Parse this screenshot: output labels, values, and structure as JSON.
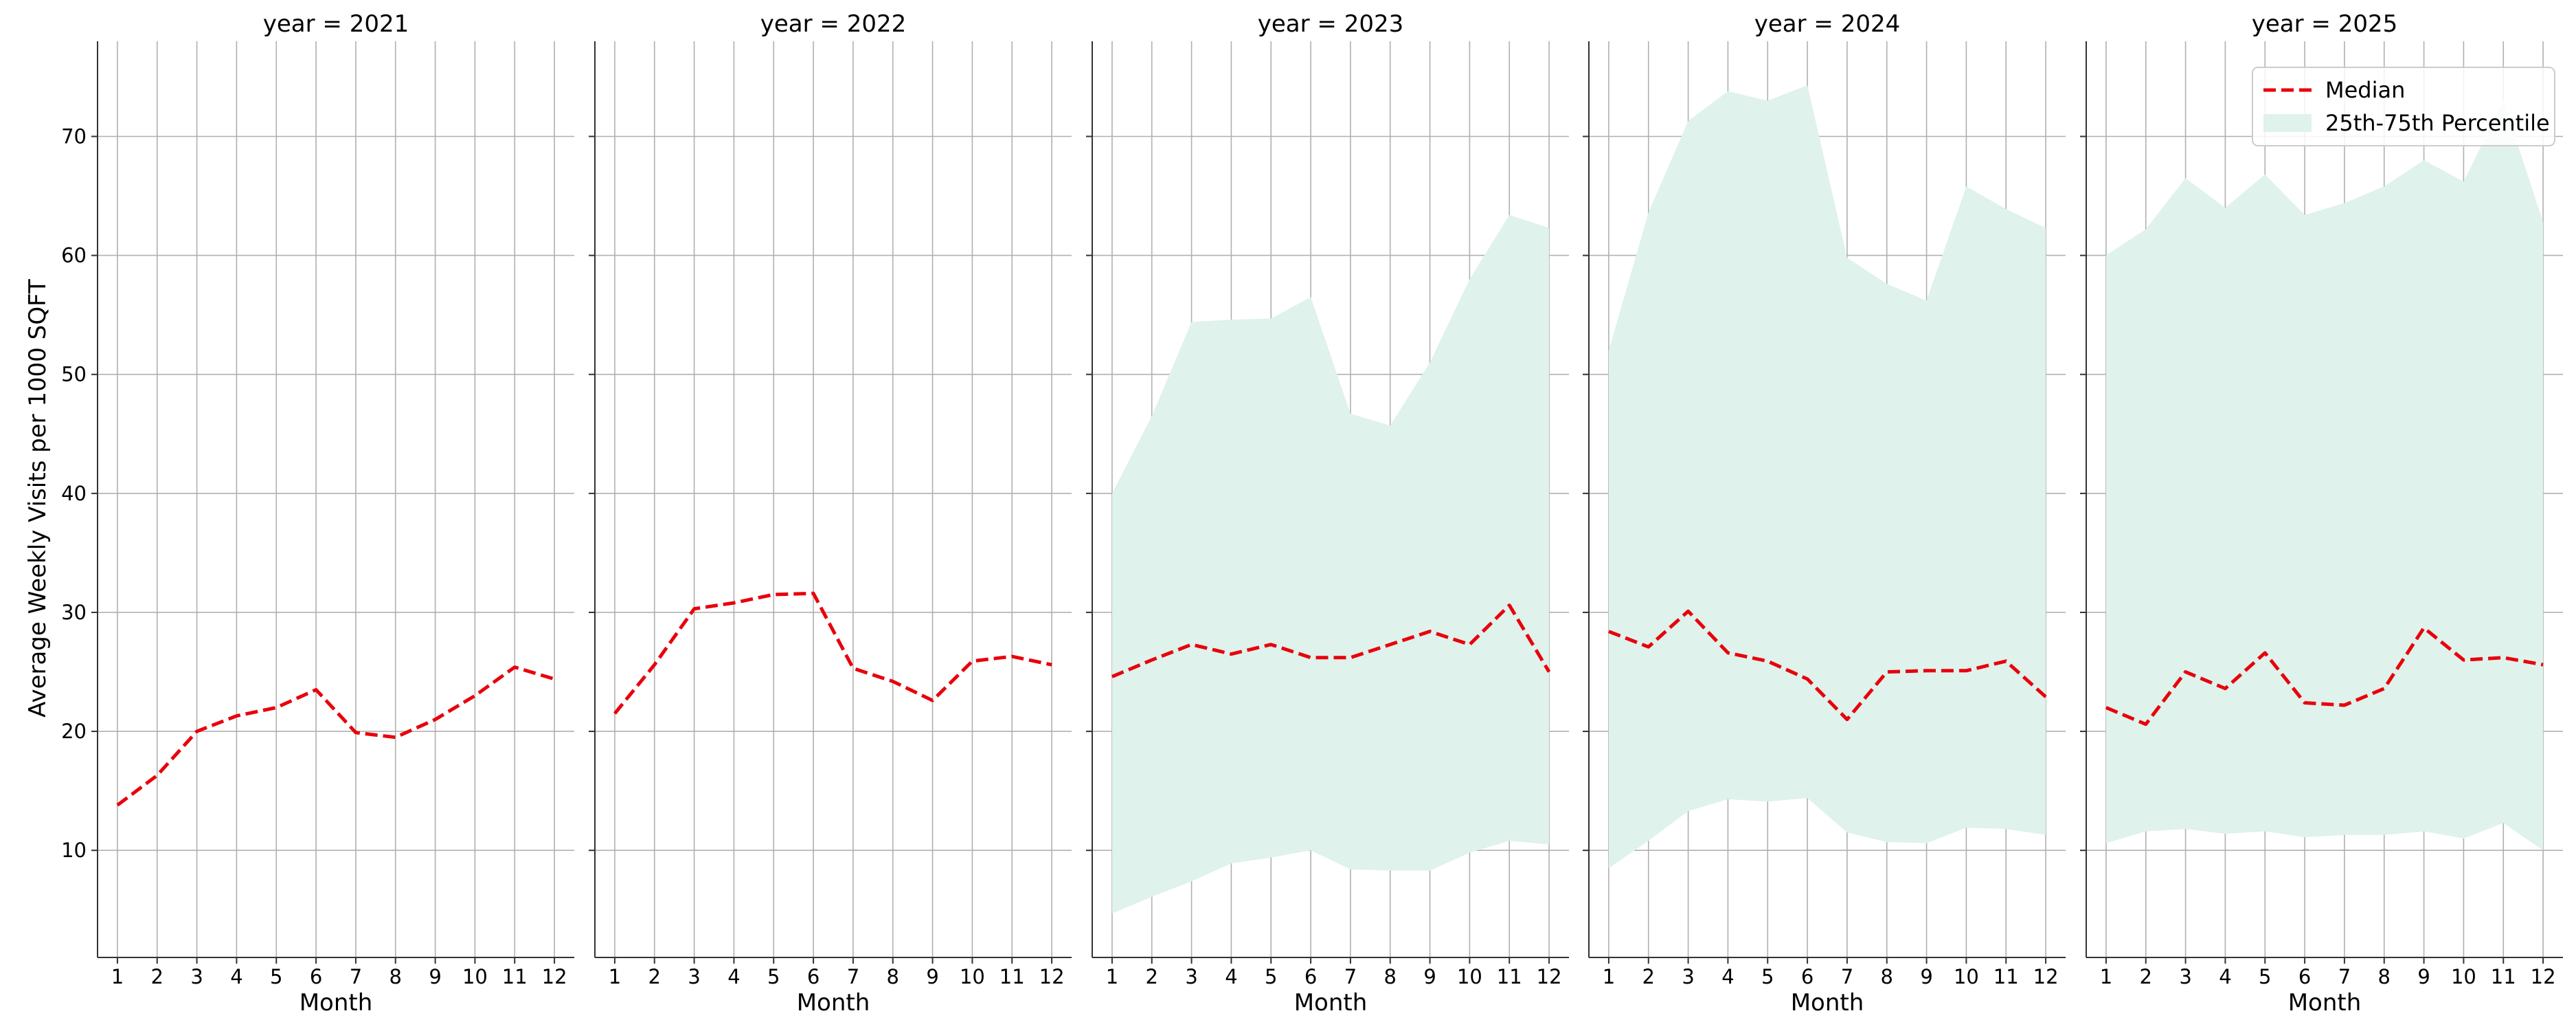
{
  "chart_data": {
    "type": "line",
    "ylabel": "Average Weekly Visits per 1000 SQFT",
    "xlabel": "Month",
    "x": [
      1,
      2,
      3,
      4,
      5,
      6,
      7,
      8,
      9,
      10,
      11,
      12
    ],
    "x_tick_labels": [
      "1",
      "2",
      "3",
      "4",
      "5",
      "6",
      "7",
      "8",
      "9",
      "10",
      "11",
      "12"
    ],
    "y_ticks": [
      10,
      20,
      30,
      40,
      50,
      60,
      70
    ],
    "y_tick_labels": [
      "10",
      "20",
      "30",
      "40",
      "50",
      "60",
      "70"
    ],
    "ylim": [
      1,
      78
    ],
    "xlim": [
      0.5,
      12.5
    ],
    "grid": true,
    "sharey": true,
    "colors": {
      "median": "#e8000b",
      "band": "#dff2ec",
      "grid": "#b0b0b0",
      "axis": "#333333"
    },
    "legend": {
      "placement": "top-right",
      "panel": 4,
      "entries": [
        {
          "label": "Median",
          "style": "dashed-line",
          "color": "#e8000b"
        },
        {
          "label": "25th-75th Percentile",
          "style": "patch",
          "color": "#dff2ec"
        }
      ]
    },
    "panels": [
      {
        "title": "year = 2021",
        "median": [
          13.8,
          16.3,
          20.0,
          21.3,
          22.0,
          23.5,
          19.9,
          19.5,
          21.0,
          23.0,
          25.4,
          24.4
        ],
        "p25": null,
        "p75": null
      },
      {
        "title": "year = 2022",
        "median": [
          21.5,
          25.6,
          30.3,
          30.8,
          31.5,
          31.6,
          25.3,
          24.2,
          22.6,
          25.9,
          26.3,
          25.6
        ],
        "p25": null,
        "p75": null
      },
      {
        "title": "year = 2023",
        "median": [
          24.6,
          26.0,
          27.3,
          26.5,
          27.3,
          26.2,
          26.2,
          27.3,
          28.4,
          27.3,
          30.6,
          25.0
        ],
        "p25": [
          4.7,
          6.1,
          7.4,
          8.9,
          9.4,
          10.0,
          8.4,
          8.3,
          8.3,
          9.8,
          10.8,
          10.5
        ],
        "p75": [
          40.0,
          46.5,
          54.4,
          54.6,
          54.7,
          56.5,
          46.7,
          45.7,
          51.0,
          58.0,
          63.4,
          62.3
        ]
      },
      {
        "title": "year = 2024",
        "median": [
          28.4,
          27.1,
          30.1,
          26.6,
          25.9,
          24.4,
          21.0,
          25.0,
          25.1,
          25.1,
          25.9,
          22.9
        ],
        "p25": [
          8.5,
          10.8,
          13.3,
          14.3,
          14.1,
          14.4,
          11.5,
          10.7,
          10.6,
          11.9,
          11.8,
          11.3
        ],
        "p75": [
          52.0,
          63.6,
          71.3,
          73.8,
          73.0,
          74.3,
          59.8,
          57.6,
          56.2,
          65.8,
          63.9,
          62.3
        ]
      },
      {
        "title": "year = 2025",
        "median": [
          22.0,
          20.6,
          25.0,
          23.6,
          26.6,
          22.4,
          22.2,
          23.6,
          28.7,
          26.0,
          26.2,
          25.6
        ],
        "p25": [
          10.6,
          11.6,
          11.8,
          11.4,
          11.6,
          11.1,
          11.3,
          11.3,
          11.6,
          11.0,
          12.3,
          10.0
        ],
        "p75": [
          60.0,
          62.2,
          66.5,
          64.0,
          66.8,
          63.4,
          64.4,
          65.8,
          68.0,
          66.2,
          73.0,
          62.8
        ]
      }
    ]
  }
}
